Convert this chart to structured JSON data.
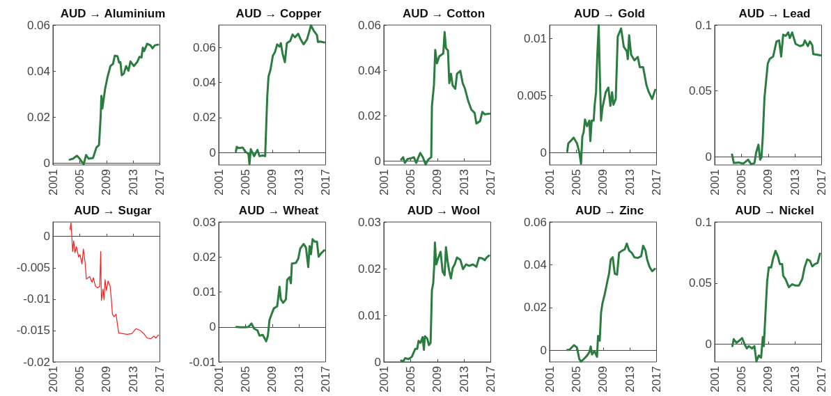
{
  "chart_data": [
    {
      "type": "line",
      "title": "AUD → Aluminium",
      "color": "#2a7d3e",
      "xlim": [
        2001,
        2017
      ],
      "xticks": [
        2001,
        2005,
        2009,
        2013,
        2017
      ],
      "ylim": [
        -0.0007,
        0.06
      ],
      "yticks": [
        0,
        0.02,
        0.04,
        0.06
      ],
      "x": [
        2003.5,
        2004.0,
        2004.6,
        2005.0,
        2005.6,
        2005.95,
        2006.35,
        2007.0,
        2007.5,
        2007.9,
        2008.15,
        2008.25,
        2008.4,
        2008.8,
        2009.15,
        2009.6,
        2010.0,
        2010.25,
        2010.65,
        2010.9,
        2011.1,
        2011.3,
        2011.6,
        2011.95,
        2012.3,
        2012.6,
        2013.1,
        2013.6,
        2013.95,
        2014.25,
        2014.45,
        2014.65,
        2015.1,
        2015.6,
        2015.9,
        2016.25,
        2016.75
      ],
      "values": [
        0.0016,
        0.002,
        0.0033,
        0.002,
        -0.0004,
        0.0036,
        0.002,
        0.0023,
        0.0068,
        0.008,
        0.0208,
        0.0293,
        0.0238,
        0.0322,
        0.0372,
        0.0422,
        0.0432,
        0.0467,
        0.0465,
        0.0437,
        0.0439,
        0.0382,
        0.0389,
        0.0422,
        0.0402,
        0.0442,
        0.0422,
        0.0439,
        0.0462,
        0.0459,
        0.0502,
        0.0487,
        0.0519,
        0.0512,
        0.0499,
        0.0512,
        0.0515
      ]
    },
    {
      "type": "line",
      "title": "AUD → Copper",
      "color": "#2a7d3e",
      "xlim": [
        2001,
        2017
      ],
      "xticks": [
        2001,
        2005,
        2009,
        2013,
        2017
      ],
      "ylim": [
        -0.007,
        0.0728
      ],
      "yticks": [
        0,
        0.02,
        0.04,
        0.06
      ],
      "x": [
        2003.57,
        2003.7,
        2003.95,
        2004.6,
        2004.95,
        2005.45,
        2005.6,
        2005.8,
        2006.3,
        2006.8,
        2007.1,
        2007.6,
        2007.95,
        2008.26,
        2008.45,
        2008.75,
        2009.1,
        2009.4,
        2009.75,
        2010.1,
        2010.3,
        2010.55,
        2010.9,
        2011.2,
        2011.7,
        2012.05,
        2012.4,
        2012.9,
        2013.2,
        2013.7,
        2014.2,
        2014.55,
        2014.8,
        2015.2,
        2015.7,
        2015.85,
        2016.2,
        2016.8
      ],
      "values": [
        0.0007,
        0.0033,
        0.0026,
        0.0029,
        0.0007,
        -0.0007,
        -0.0066,
        0.002,
        -0.002,
        0.0016,
        -0.002,
        -0.0016,
        -0.002,
        0.0316,
        0.0434,
        0.0474,
        0.0553,
        0.0572,
        0.0618,
        0.0605,
        0.0625,
        0.0566,
        0.0516,
        0.0625,
        0.0638,
        0.0674,
        0.0658,
        0.0678,
        0.0651,
        0.0618,
        0.0645,
        0.0691,
        0.0726,
        0.0697,
        0.0671,
        0.0632,
        0.0634,
        0.0629
      ]
    },
    {
      "type": "line",
      "title": "AUD → Cotton",
      "color": "#2a7d3e",
      "xlim": [
        2001,
        2017
      ],
      "xticks": [
        2001,
        2005,
        2009,
        2013,
        2017
      ],
      "ylim": [
        -0.0017,
        0.06
      ],
      "yticks": [
        0,
        0.02,
        0.04,
        0.06
      ],
      "x": [
        2003.6,
        2003.9,
        2004.15,
        2004.55,
        2005.05,
        2005.5,
        2005.85,
        2006.45,
        2006.85,
        2007.25,
        2007.65,
        2008.1,
        2008.2,
        2008.5,
        2008.7,
        2008.95,
        2009.3,
        2009.9,
        2010.1,
        2010.3,
        2010.6,
        2010.8,
        2011.05,
        2011.3,
        2011.7,
        2011.95,
        2012.45,
        2012.8,
        2013.15,
        2013.6,
        2014.1,
        2014.6,
        2014.85,
        2015.4,
        2015.75,
        2016.1,
        2016.8
      ],
      "values": [
        0.0007,
        0.0017,
        -0.0008,
        0.0009,
        0.0012,
        0.0017,
        -0.0008,
        0.0036,
        0.0017,
        -0.0015,
        0.0007,
        0.0017,
        0.0242,
        0.0334,
        0.049,
        0.0431,
        0.0462,
        0.0475,
        0.0569,
        0.0498,
        0.0488,
        0.0344,
        0.0385,
        0.0334,
        0.0319,
        0.0385,
        0.0398,
        0.0344,
        0.0319,
        0.0268,
        0.0227,
        0.0212,
        0.0166,
        0.0176,
        0.0217,
        0.0206,
        0.0209
      ]
    },
    {
      "type": "line",
      "title": "AUD → Gold",
      "color": "#2a7d3e",
      "xlim": [
        2001,
        2017
      ],
      "xticks": [
        2001,
        2005,
        2009,
        2013,
        2017
      ],
      "ylim": [
        -0.0011,
        0.0112
      ],
      "yticks": [
        0,
        0.005,
        0.01
      ],
      "x": [
        2003.65,
        2003.8,
        2004.15,
        2004.6,
        2005.1,
        2005.45,
        2005.7,
        2005.9,
        2006.1,
        2006.3,
        2006.6,
        2006.95,
        2007.1,
        2007.3,
        2007.6,
        2007.75,
        2007.95,
        2008.15,
        2008.35,
        2008.5,
        2008.7,
        2008.9,
        2009.4,
        2009.8,
        2010.1,
        2010.35,
        2010.55,
        2010.9,
        2011.2,
        2011.7,
        2012.1,
        2012.55,
        2012.7,
        2012.9,
        2013.2,
        2013.7,
        2014.2,
        2014.5,
        2015.0,
        2015.5,
        2015.85,
        2016.35,
        2016.8
      ],
      "values": [
        0.0001,
        0.0008,
        0.001,
        0.0013,
        0.0008,
        0.0,
        -0.001,
        0.0014,
        0.0018,
        0.0029,
        0.0023,
        0.0028,
        0.001,
        0.0028,
        0.0028,
        0.0042,
        0.0053,
        0.0087,
        0.0112,
        0.0073,
        0.0028,
        0.0039,
        0.0053,
        0.0057,
        0.0041,
        0.0053,
        0.0042,
        0.0047,
        0.0102,
        0.0109,
        0.0093,
        0.0089,
        0.0082,
        0.0103,
        0.0086,
        0.0081,
        0.0084,
        0.0075,
        0.0075,
        0.0059,
        0.0053,
        0.0047,
        0.0055
      ]
    },
    {
      "type": "line",
      "title": "AUD → Lead",
      "color": "#2a7d3e",
      "xlim": [
        2001,
        2017
      ],
      "xticks": [
        2001,
        2005,
        2009,
        2013,
        2017
      ],
      "ylim": [
        -0.0063,
        0.1
      ],
      "yticks": [
        0,
        0.05,
        0.1
      ],
      "x": [
        2003.6,
        2003.87,
        2004.6,
        2005.25,
        2006.0,
        2006.45,
        2006.95,
        2007.2,
        2007.55,
        2007.8,
        2008.0,
        2008.2,
        2008.45,
        2008.65,
        2008.95,
        2009.25,
        2009.75,
        2010.25,
        2010.65,
        2010.95,
        2011.25,
        2011.65,
        2012.0,
        2012.25,
        2012.6,
        2013.1,
        2013.75,
        2014.25,
        2014.5,
        2014.95,
        2015.25,
        2015.6,
        2015.75,
        2016.25,
        2016.85
      ],
      "values": [
        0.0016,
        -0.0049,
        -0.0044,
        -0.0054,
        -0.0023,
        -0.0057,
        -0.0049,
        0.003,
        0.0091,
        -0.0023,
        -0.0005,
        0.0152,
        0.0448,
        0.0552,
        0.0709,
        0.0744,
        0.0761,
        0.0875,
        0.0883,
        0.0761,
        0.0927,
        0.0918,
        0.0944,
        0.0901,
        0.0944,
        0.0857,
        0.084,
        0.0848,
        0.0883,
        0.084,
        0.0875,
        0.0848,
        0.0779,
        0.0775,
        0.077
      ]
    },
    {
      "type": "line",
      "title": "AUD → Sugar",
      "color": "#ff1a1a",
      "xlim": [
        2001,
        2017
      ],
      "xticks": [
        2001,
        2005,
        2009,
        2013,
        2017
      ],
      "ylim": [
        -0.02,
        0.0023
      ],
      "yticks": [
        -0.02,
        -0.015,
        -0.01,
        -0.005,
        0
      ],
      "x": [
        2003.55,
        2003.7,
        2003.95,
        2004.1,
        2004.3,
        2004.5,
        2004.85,
        2005.05,
        2005.35,
        2005.55,
        2005.8,
        2006.0,
        2006.5,
        2006.85,
        2007.05,
        2007.35,
        2007.65,
        2008.0,
        2008.15,
        2008.25,
        2008.5,
        2008.65,
        2008.8,
        2009.0,
        2009.25,
        2009.55,
        2009.75,
        2009.9,
        2010.15,
        2010.45,
        2010.7,
        2010.85,
        2011.45,
        2012.1,
        2012.8,
        2013.45,
        2014.1,
        2014.6,
        2015.1,
        2015.65,
        2016.1,
        2016.4,
        2016.8
      ],
      "values": [
        0.0011,
        0.0022,
        -0.0024,
        -0.0007,
        -0.0026,
        -0.0016,
        -0.0033,
        -0.0029,
        -0.0044,
        -0.002,
        -0.004,
        -0.0068,
        -0.0064,
        -0.0073,
        -0.0066,
        -0.0079,
        -0.0082,
        -0.008,
        -0.0024,
        -0.0102,
        -0.0084,
        -0.0101,
        -0.0069,
        -0.0086,
        -0.0071,
        -0.0079,
        -0.0101,
        -0.0124,
        -0.0128,
        -0.0124,
        -0.0144,
        -0.0154,
        -0.0155,
        -0.0156,
        -0.0155,
        -0.0147,
        -0.015,
        -0.0155,
        -0.0162,
        -0.0163,
        -0.0159,
        -0.0162,
        -0.0157
      ]
    },
    {
      "type": "line",
      "title": "AUD → Wheat",
      "color": "#2a7d3e",
      "xlim": [
        2001,
        2017
      ],
      "xticks": [
        2001,
        2005,
        2009,
        2013,
        2017
      ],
      "ylim": [
        -0.01,
        0.03
      ],
      "yticks": [
        -0.01,
        0,
        0.01,
        0.02,
        0.03
      ],
      "x": [
        2003.65,
        2004.3,
        2004.95,
        2005.45,
        2005.9,
        2006.3,
        2006.8,
        2007.1,
        2007.6,
        2008.1,
        2008.35,
        2008.6,
        2008.9,
        2009.25,
        2009.75,
        2010.1,
        2010.3,
        2010.65,
        2011.05,
        2011.25,
        2011.6,
        2011.8,
        2011.95,
        2012.55,
        2012.9,
        2013.2,
        2013.7,
        2014.05,
        2014.4,
        2014.6,
        2014.8,
        2015.05,
        2015.35,
        2015.7,
        2015.95,
        2016.35,
        2016.8
      ],
      "values": [
        0,
        -0.0001,
        -0.0001,
        0,
        0.001,
        -0.0005,
        -0.001,
        -0.0025,
        -0.0023,
        -0.0041,
        -0.0026,
        0.002,
        0.0036,
        0.0053,
        0.0059,
        0.0115,
        0.0079,
        0.0069,
        0.0079,
        0.0135,
        0.0142,
        0.0125,
        0.0181,
        0.0183,
        0.0195,
        0.0224,
        0.0237,
        0.0227,
        0.0171,
        0.0231,
        0.0208,
        0.0251,
        0.0244,
        0.0244,
        0.0201,
        0.0211,
        0.0219
      ]
    },
    {
      "type": "line",
      "title": "AUD → Wool",
      "color": "#2a7d3e",
      "xlim": [
        2001,
        2017
      ],
      "xticks": [
        2001,
        2005,
        2009,
        2013,
        2017
      ],
      "ylim": [
        0,
        0.03
      ],
      "yticks": [
        0,
        0.01,
        0.02,
        0.03
      ],
      "x": [
        2003.6,
        2003.85,
        2004.2,
        2004.7,
        2005.2,
        2005.7,
        2006.0,
        2006.2,
        2006.5,
        2006.8,
        2007.0,
        2007.15,
        2007.5,
        2007.75,
        2008.0,
        2008.2,
        2008.4,
        2008.55,
        2008.65,
        2008.85,
        2009.15,
        2009.5,
        2009.8,
        2010.1,
        2010.3,
        2010.55,
        2010.8,
        2011.05,
        2011.3,
        2011.6,
        2011.95,
        2012.45,
        2012.85,
        2013.3,
        2013.75,
        2014.35,
        2014.85,
        2015.25,
        2015.75,
        2016.1,
        2016.4,
        2016.75
      ],
      "values": [
        0.0003,
        0,
        0.0008,
        0.0006,
        0.0011,
        0.0028,
        0.0028,
        0.0045,
        0.0041,
        0.0053,
        0.0026,
        0.0055,
        0.005,
        0.0036,
        0.0041,
        0.0154,
        0.0169,
        0.0209,
        0.0256,
        0.0209,
        0.0223,
        0.0236,
        0.0194,
        0.0186,
        0.0246,
        0.0216,
        0.0194,
        0.0179,
        0.0201,
        0.0209,
        0.0224,
        0.0219,
        0.0199,
        0.0209,
        0.0206,
        0.0209,
        0.0204,
        0.0223,
        0.0222,
        0.0218,
        0.0224,
        0.0228
      ]
    },
    {
      "type": "line",
      "title": "AUD → Zinc",
      "color": "#2a7d3e",
      "xlim": [
        2001,
        2017
      ],
      "xticks": [
        2001,
        2005,
        2009,
        2013,
        2017
      ],
      "ylim": [
        -0.0054,
        0.06
      ],
      "yticks": [
        0,
        0.02,
        0.04,
        0.06
      ],
      "x": [
        2003.65,
        2003.95,
        2004.65,
        2005.1,
        2005.45,
        2005.7,
        2006.1,
        2006.6,
        2006.95,
        2007.15,
        2007.35,
        2007.7,
        2008.1,
        2008.25,
        2008.5,
        2008.7,
        2008.9,
        2009.25,
        2009.6,
        2009.9,
        2010.15,
        2010.45,
        2010.75,
        2011.1,
        2011.4,
        2011.9,
        2012.25,
        2012.55,
        2012.9,
        2013.3,
        2013.7,
        2014.2,
        2014.7,
        2015.0,
        2015.35,
        2015.6,
        2015.95,
        2016.35,
        2016.75
      ],
      "values": [
        0.0002,
        0.0002,
        0.0024,
        0.0013,
        -0.0041,
        -0.0053,
        -0.0041,
        -0.0025,
        -0.0009,
        0.0018,
        -0.0019,
        -0.0003,
        -0.003,
        0.0067,
        0.0045,
        0.0175,
        0.0218,
        0.0262,
        0.0316,
        0.0359,
        0.0424,
        0.0435,
        0.0359,
        0.0354,
        0.0456,
        0.0467,
        0.0472,
        0.0499,
        0.0467,
        0.0456,
        0.0435,
        0.0432,
        0.044,
        0.0489,
        0.0467,
        0.0424,
        0.0391,
        0.037,
        0.0381
      ]
    },
    {
      "type": "line",
      "title": "AUD → Nickel",
      "color": "#2a7d3e",
      "xlim": [
        2001,
        2017
      ],
      "xticks": [
        2001,
        2005,
        2009,
        2013,
        2017
      ],
      "ylim": [
        -0.0144,
        0.1
      ],
      "yticks": [
        0,
        0.05,
        0.1
      ],
      "x": [
        2003.65,
        2003.85,
        2004.25,
        2004.75,
        2005.1,
        2005.45,
        2005.8,
        2006.1,
        2006.6,
        2006.95,
        2007.25,
        2007.6,
        2007.95,
        2008.2,
        2008.35,
        2008.6,
        2008.85,
        2009.1,
        2009.45,
        2009.75,
        2010.1,
        2010.45,
        2010.75,
        2011.1,
        2011.25,
        2011.6,
        2012.1,
        2012.6,
        2013.1,
        2013.6,
        2014.1,
        2014.45,
        2014.85,
        2015.25,
        2015.6,
        2016.0,
        2016.4,
        2016.75
      ],
      "values": [
        -0.0015,
        0.0042,
        0.0013,
        0.0032,
        0.0051,
        0.0004,
        -0.0034,
        -0.0015,
        -0.0034,
        -0.0015,
        -0.014,
        -0.0091,
        -0.011,
        0.006,
        -0.0015,
        0.025,
        0.0514,
        0.0628,
        0.0628,
        0.0703,
        0.0764,
        0.0722,
        0.0656,
        0.0656,
        0.0561,
        0.0533,
        0.0467,
        0.0491,
        0.048,
        0.048,
        0.0533,
        0.0628,
        0.0694,
        0.0684,
        0.0637,
        0.0656,
        0.0665,
        0.0741
      ]
    }
  ]
}
